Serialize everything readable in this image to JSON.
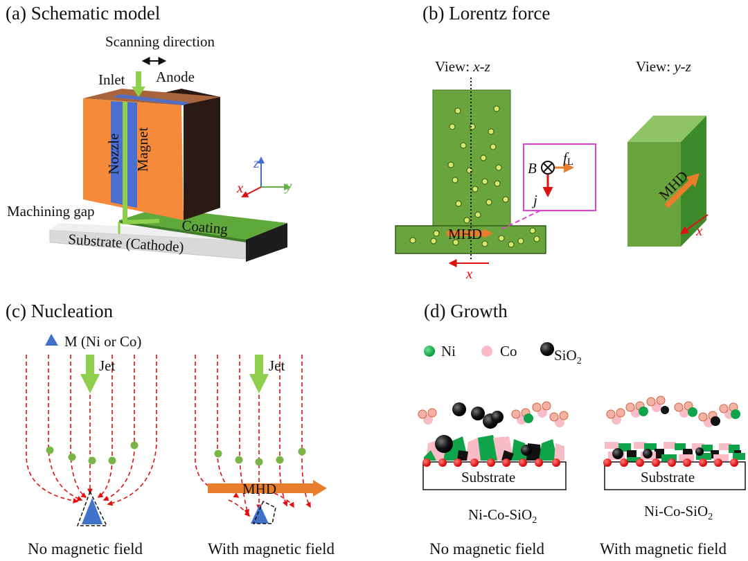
{
  "panel_a": {
    "title": "(a) Schematic model",
    "scanning_direction": "Scanning direction",
    "inlet": "Inlet",
    "anode": "Anode",
    "nozzle": "Nozzle",
    "magnet": "Magnet",
    "machining_gap": "Machining gap",
    "coating": "Coating",
    "substrate": "Substrate (Cathode)",
    "axis_x": "x",
    "axis_y": "y",
    "axis_z": "z"
  },
  "panel_b": {
    "title": "(b) Lorentz force",
    "view_xz_prefix": "View: ",
    "view_xz_axes": "x-z",
    "view_yz_prefix": "View: ",
    "view_yz_axes": "y-z",
    "b_label": "B",
    "f_label": "f",
    "f_sub": "L",
    "j_label": "j",
    "mhd": "MHD",
    "mhd_side": "MHD",
    "x_label": "x",
    "x_label_right": "x"
  },
  "panel_c": {
    "title": "(c) Nucleation",
    "legend_m": "M (Ni or Co)",
    "jet_left": "Jet",
    "jet_right": "Jet",
    "mhd": "MHD",
    "caption_left": "No magnetic field",
    "caption_right": "With magnetic field"
  },
  "panel_d": {
    "title": "(d) Growth",
    "legend_ni": "Ni",
    "legend_co": "Co",
    "legend_sio2": "SiO",
    "legend_sio2_sub": "2",
    "substrate_left": "Substrate",
    "substrate_right": "Substrate",
    "formula_left": "Ni-Co-SiO",
    "formula_left_sub": "2",
    "formula_right": "Ni-Co-SiO",
    "formula_right_sub": "2",
    "caption_left": "No magnetic field",
    "caption_right": "With magnetic field"
  },
  "colors": {
    "orange": "#f58b3a",
    "dark_brown": "#2b1a14",
    "nozzle_blue": "#4a6fd0",
    "coating_green": "#6abf3c",
    "bright_green": "#8ed04b",
    "electrolyte_green": "#6aa43c",
    "bubble_yellow": "#d9e86a",
    "mhd_orange": "#e87e2c",
    "red": "#e01010",
    "magenta": "#e040d0",
    "nucleus_blue": "#3f72c8",
    "ni_green": "#10a44a",
    "co_pink": "#f8bcc6",
    "sio2_black": "#111111",
    "dot_green": "#79b547"
  }
}
